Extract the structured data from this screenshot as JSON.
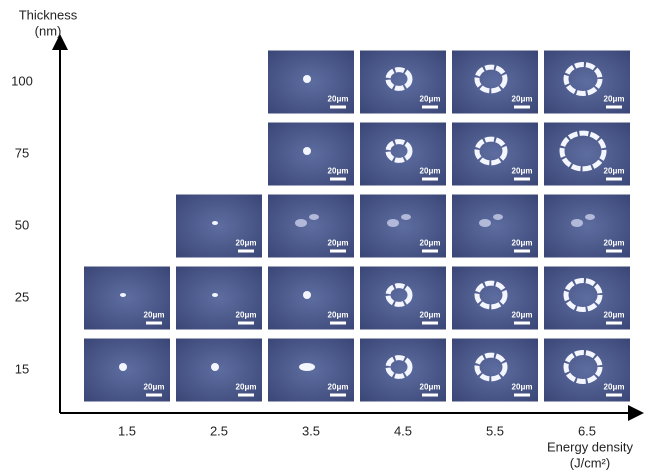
{
  "y_axis": {
    "title_line1": "Thickness",
    "title_line2": "(nm)"
  },
  "x_axis": {
    "title_line1": "Energy density",
    "title_line2": "(J/cm²)"
  },
  "columns": [
    "1.5",
    "2.5",
    "3.5",
    "4.5",
    "5.5",
    "6.5"
  ],
  "rows": [
    {
      "label": "100",
      "cells": [
        null,
        null,
        "20μm",
        "20μm",
        "20μm",
        "20μm"
      ]
    },
    {
      "label": "75",
      "cells": [
        null,
        null,
        "20μm",
        "20μm",
        "20μm",
        "20μm"
      ]
    },
    {
      "label": "50",
      "cells": [
        null,
        "20μm",
        "20μm",
        "20μm",
        "20μm",
        "20μm"
      ]
    },
    {
      "label": "25",
      "cells": [
        "20μm",
        "20μm",
        "20μm",
        "20μm",
        "20μm",
        "20μm"
      ]
    },
    {
      "label": "15",
      "cells": [
        "20μm",
        "20μm",
        "20μm",
        "20μm",
        "20μm",
        "20μm"
      ]
    }
  ]
}
